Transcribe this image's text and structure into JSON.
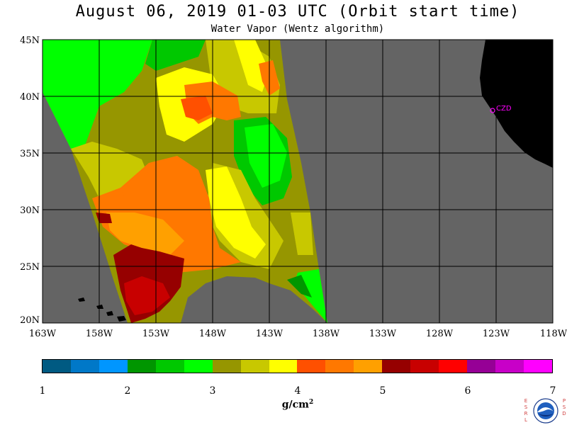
{
  "header": {
    "title": "August 06, 2019  01-03 UTC  (Orbit start time)",
    "subtitle": "Water Vapor (Wentz algorithm)"
  },
  "map": {
    "lat_ticks": [
      "45N",
      "40N",
      "35N",
      "30N",
      "25N",
      "20N"
    ],
    "lon_ticks": [
      "163W",
      "158W",
      "153W",
      "148W",
      "143W",
      "138W",
      "133W",
      "128W",
      "123W",
      "118W"
    ],
    "station_label": "CZD",
    "colors": {
      "ocean_no_data": "#646464",
      "land": "#000000",
      "grid": "#000000",
      "station": "#ff00ff"
    }
  },
  "colorbar": {
    "ticks": [
      "1",
      "2",
      "3",
      "4",
      "5",
      "6",
      "7"
    ],
    "unit": "g/cm",
    "unit_exp": "2",
    "colors": [
      "#005a82",
      "#0078c8",
      "#0096ff",
      "#009600",
      "#00c800",
      "#00ff00",
      "#969600",
      "#c8c800",
      "#ffff00",
      "#ff5000",
      "#ff7800",
      "#ffa000",
      "#960000",
      "#c80000",
      "#ff0000",
      "#960096",
      "#c800c8",
      "#ff00ff"
    ]
  },
  "logo": {
    "left_letters": "E S R L",
    "right_letters": "P S D"
  }
}
